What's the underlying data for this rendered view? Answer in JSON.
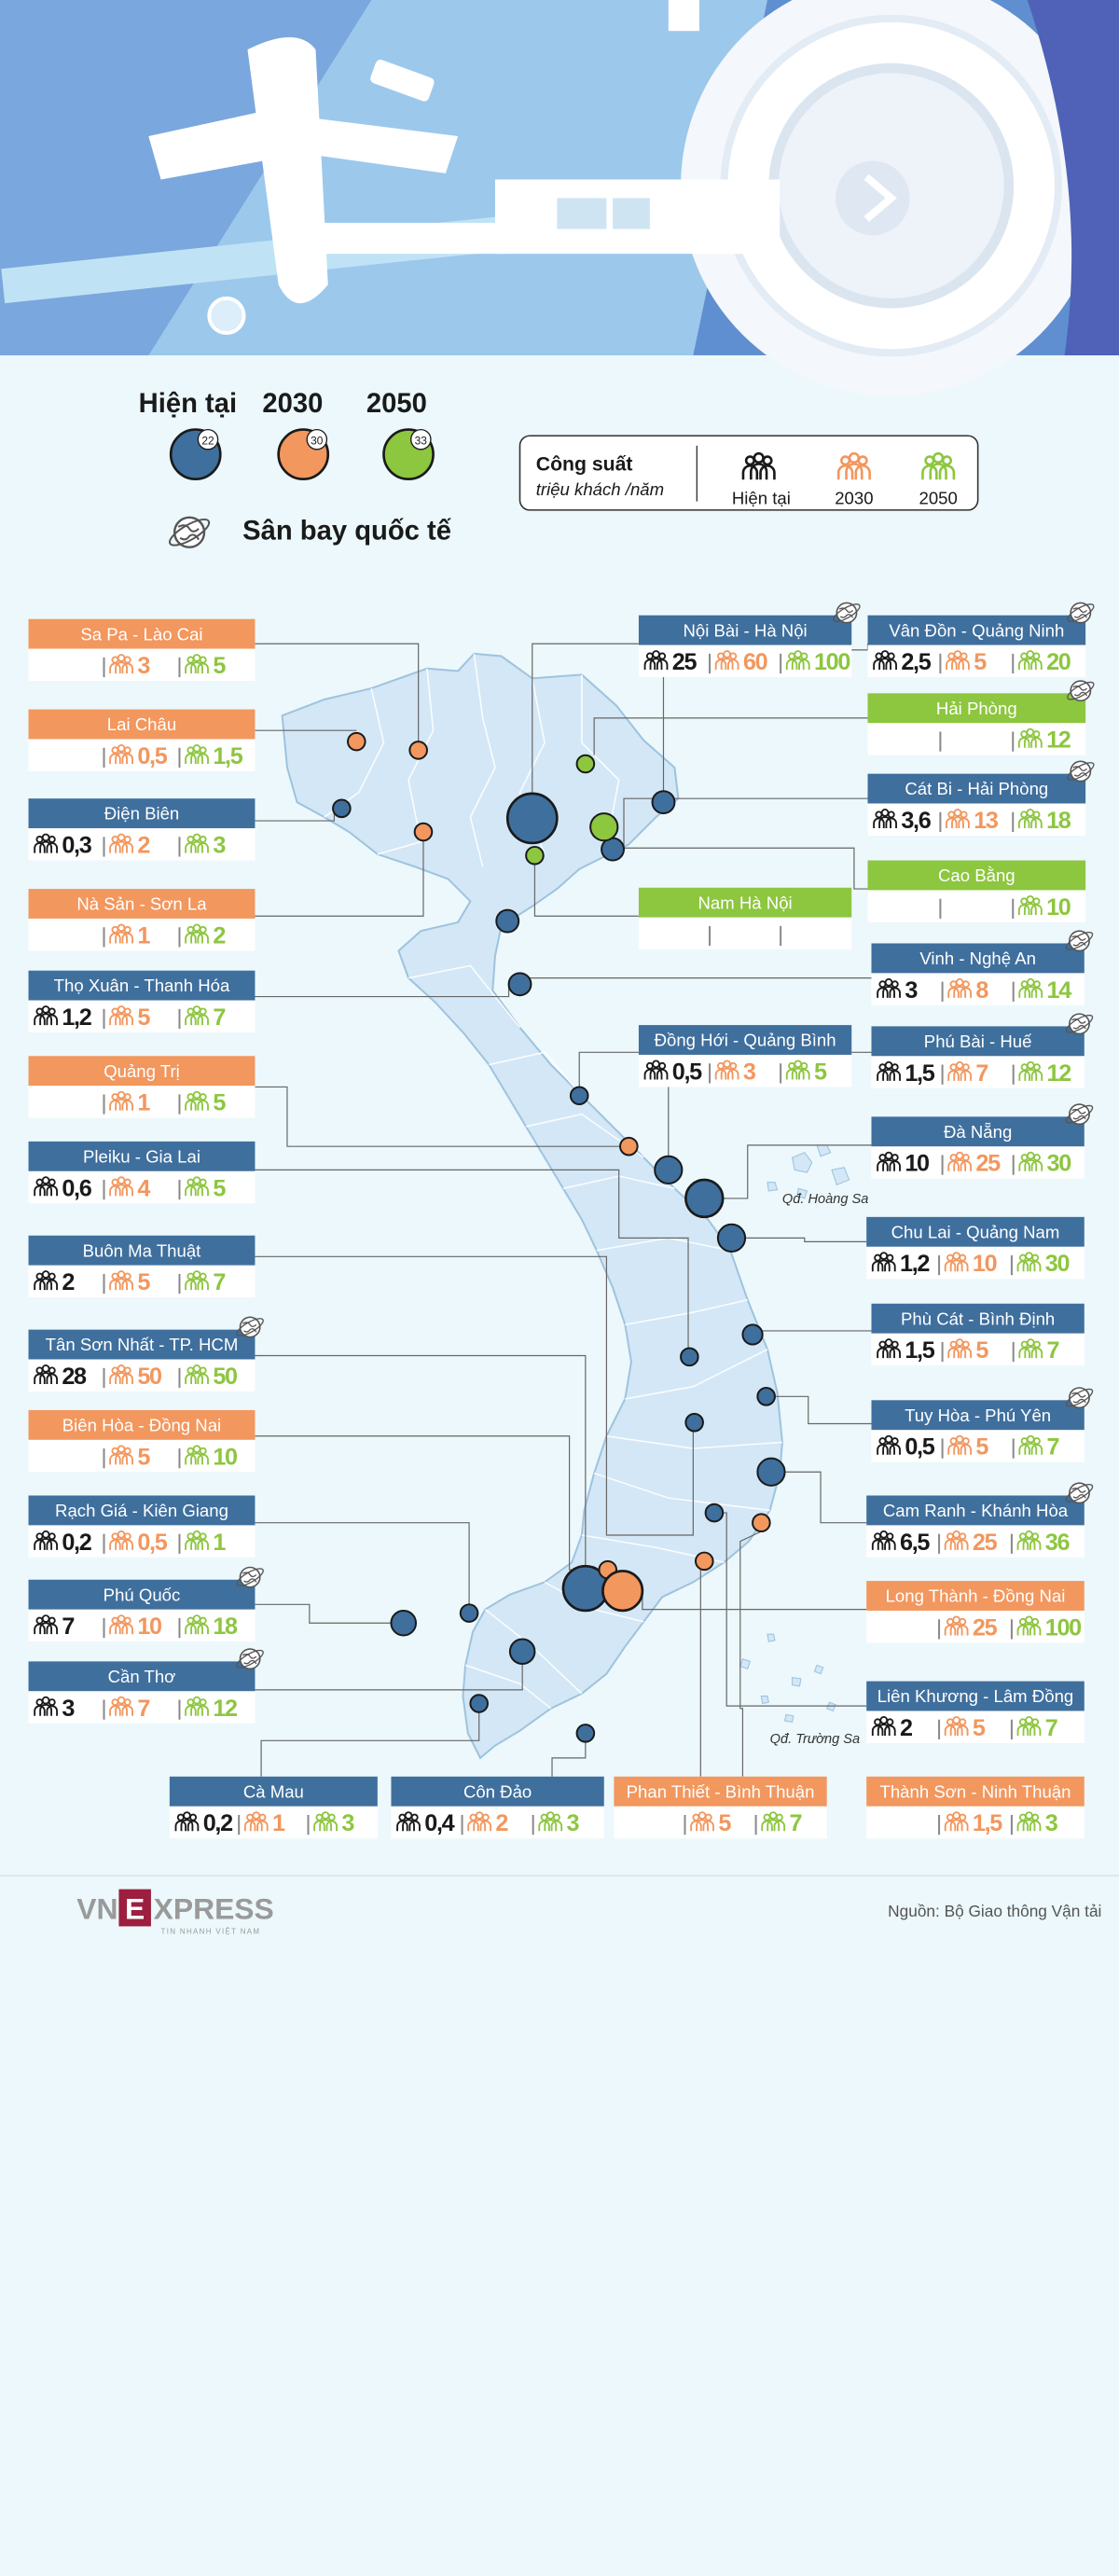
{
  "legend": {
    "current_label": "Hiện tại",
    "y2030_label": "2030",
    "y2050_label": "2050",
    "current_badge": "22",
    "y2030_badge": "30",
    "y2050_badge": "33",
    "intl_label": "Sân bay quốc tế",
    "capacity_title": "Công suất",
    "capacity_unit": "triệu khách /năm",
    "cap_current": "Hiện tại",
    "cap_2030": "2030",
    "cap_2050": "2050"
  },
  "colors": {
    "current": "#3f6f9d",
    "y2030": "#f2975e",
    "y2050": "#8dc63f",
    "bg": "#ecf8fb",
    "map": "#d4e8f5"
  },
  "airports": [
    {
      "name": "Sa Pa - Lào Cai",
      "color": "orange",
      "intl": false,
      "cur": "",
      "v30": "3",
      "v50": "5"
    },
    {
      "name": "Lai Châu",
      "color": "orange",
      "intl": false,
      "cur": "",
      "v30": "0,5",
      "v50": "1,5"
    },
    {
      "name": "Điện Biên",
      "color": "blue",
      "intl": false,
      "cur": "0,3",
      "v30": "2",
      "v50": "3"
    },
    {
      "name": "Nà Sản - Sơn La",
      "color": "orange",
      "intl": false,
      "cur": "",
      "v30": "1",
      "v50": "2"
    },
    {
      "name": "Thọ Xuân - Thanh Hóa",
      "color": "blue",
      "intl": false,
      "cur": "1,2",
      "v30": "5",
      "v50": "7"
    },
    {
      "name": "Quảng Trị",
      "color": "orange",
      "intl": false,
      "cur": "",
      "v30": "1",
      "v50": "5"
    },
    {
      "name": "Pleiku - Gia Lai",
      "color": "blue",
      "intl": false,
      "cur": "0,6",
      "v30": "4",
      "v50": "5"
    },
    {
      "name": "Buôn Ma Thuật",
      "color": "blue",
      "intl": false,
      "cur": "2",
      "v30": "5",
      "v50": "7"
    },
    {
      "name": "Tân Sơn Nhất - TP. HCM",
      "color": "blue",
      "intl": true,
      "cur": "28",
      "v30": "50",
      "v50": "50"
    },
    {
      "name": "Biên Hòa - Đồng Nai",
      "color": "orange",
      "intl": false,
      "cur": "",
      "v30": "5",
      "v50": "10"
    },
    {
      "name": "Rạch Giá - Kiên Giang",
      "color": "blue",
      "intl": false,
      "cur": "0,2",
      "v30": "0,5",
      "v50": "1"
    },
    {
      "name": "Phú Quốc",
      "color": "blue",
      "intl": true,
      "cur": "7",
      "v30": "10",
      "v50": "18"
    },
    {
      "name": "Cần Thơ",
      "color": "blue",
      "intl": true,
      "cur": "3",
      "v30": "7",
      "v50": "12"
    },
    {
      "name": "Cà Mau",
      "color": "blue",
      "intl": false,
      "cur": "0,2",
      "v30": "1",
      "v50": "3"
    },
    {
      "name": "Côn Đảo",
      "color": "blue",
      "intl": false,
      "cur": "0,4",
      "v30": "2",
      "v50": "3"
    },
    {
      "name": "Phan Thiết - Bình Thuận",
      "color": "orange",
      "intl": false,
      "cur": "",
      "v30": "5",
      "v50": "7"
    },
    {
      "name": "Thành Sơn - Ninh Thuận",
      "color": "orange",
      "intl": false,
      "cur": "",
      "v30": "1,5",
      "v50": "3"
    },
    {
      "name": "Nội Bài - Hà Nội",
      "color": "blue",
      "intl": true,
      "cur": "25",
      "v30": "60",
      "v50": "100"
    },
    {
      "name": "Vân Đồn - Quảng Ninh",
      "color": "blue",
      "intl": true,
      "cur": "2,5",
      "v30": "5",
      "v50": "20"
    },
    {
      "name": "Hải Phòng",
      "color": "green",
      "intl": true,
      "cur": "",
      "v30": "",
      "v50": "12"
    },
    {
      "name": "Cát Bi - Hải Phòng",
      "color": "blue",
      "intl": true,
      "cur": "3,6",
      "v30": "13",
      "v50": "18"
    },
    {
      "name": "Cao Bằng",
      "color": "green",
      "intl": false,
      "cur": "",
      "v30": "",
      "v50": "10"
    },
    {
      "name": "Nam Hà Nội",
      "color": "green",
      "intl": false,
      "cur": "",
      "v30": "",
      "v50": ""
    },
    {
      "name": "Vinh - Nghệ An",
      "color": "blue",
      "intl": true,
      "cur": "3",
      "v30": "8",
      "v50": "14"
    },
    {
      "name": "Đồng Hới - Quảng Bình",
      "color": "blue",
      "intl": false,
      "cur": "0,5",
      "v30": "3",
      "v50": "5"
    },
    {
      "name": "Phú Bài - Huế",
      "color": "blue",
      "intl": true,
      "cur": "1,5",
      "v30": "7",
      "v50": "12"
    },
    {
      "name": "Đà Nẵng",
      "color": "blue",
      "intl": true,
      "cur": "10",
      "v30": "25",
      "v50": "30"
    },
    {
      "name": "Chu Lai - Quảng Nam",
      "color": "blue",
      "intl": false,
      "cur": "1,2",
      "v30": "10",
      "v50": "30"
    },
    {
      "name": "Phù Cát - Bình Định",
      "color": "blue",
      "intl": false,
      "cur": "1,5",
      "v30": "5",
      "v50": "7"
    },
    {
      "name": "Tuy Hòa - Phú Yên",
      "color": "blue",
      "intl": true,
      "cur": "0,5",
      "v30": "5",
      "v50": "7"
    },
    {
      "name": "Cam Ranh - Khánh Hòa",
      "color": "blue",
      "intl": true,
      "cur": "6,5",
      "v30": "25",
      "v50": "36"
    },
    {
      "name": "Long Thành - Đồng Nai",
      "color": "orange",
      "intl": false,
      "cur": "",
      "v30": "25",
      "v50": "100"
    },
    {
      "name": "Liên Khương - Lâm Đồng",
      "color": "blue",
      "intl": false,
      "cur": "2",
      "v30": "5",
      "v50": "7"
    }
  ],
  "map_labels": {
    "hoang_sa": "Qđ. Hoàng Sa",
    "truong_sa": "Qđ. Trường Sa"
  },
  "footer": {
    "logo_vn": "VN",
    "logo_e": "E",
    "logo_xpress": "XPRESS",
    "logo_tagline": "TIN NHANH VIỆT NAM",
    "source": "Nguồn: Bộ Giao thông Vận tải"
  }
}
